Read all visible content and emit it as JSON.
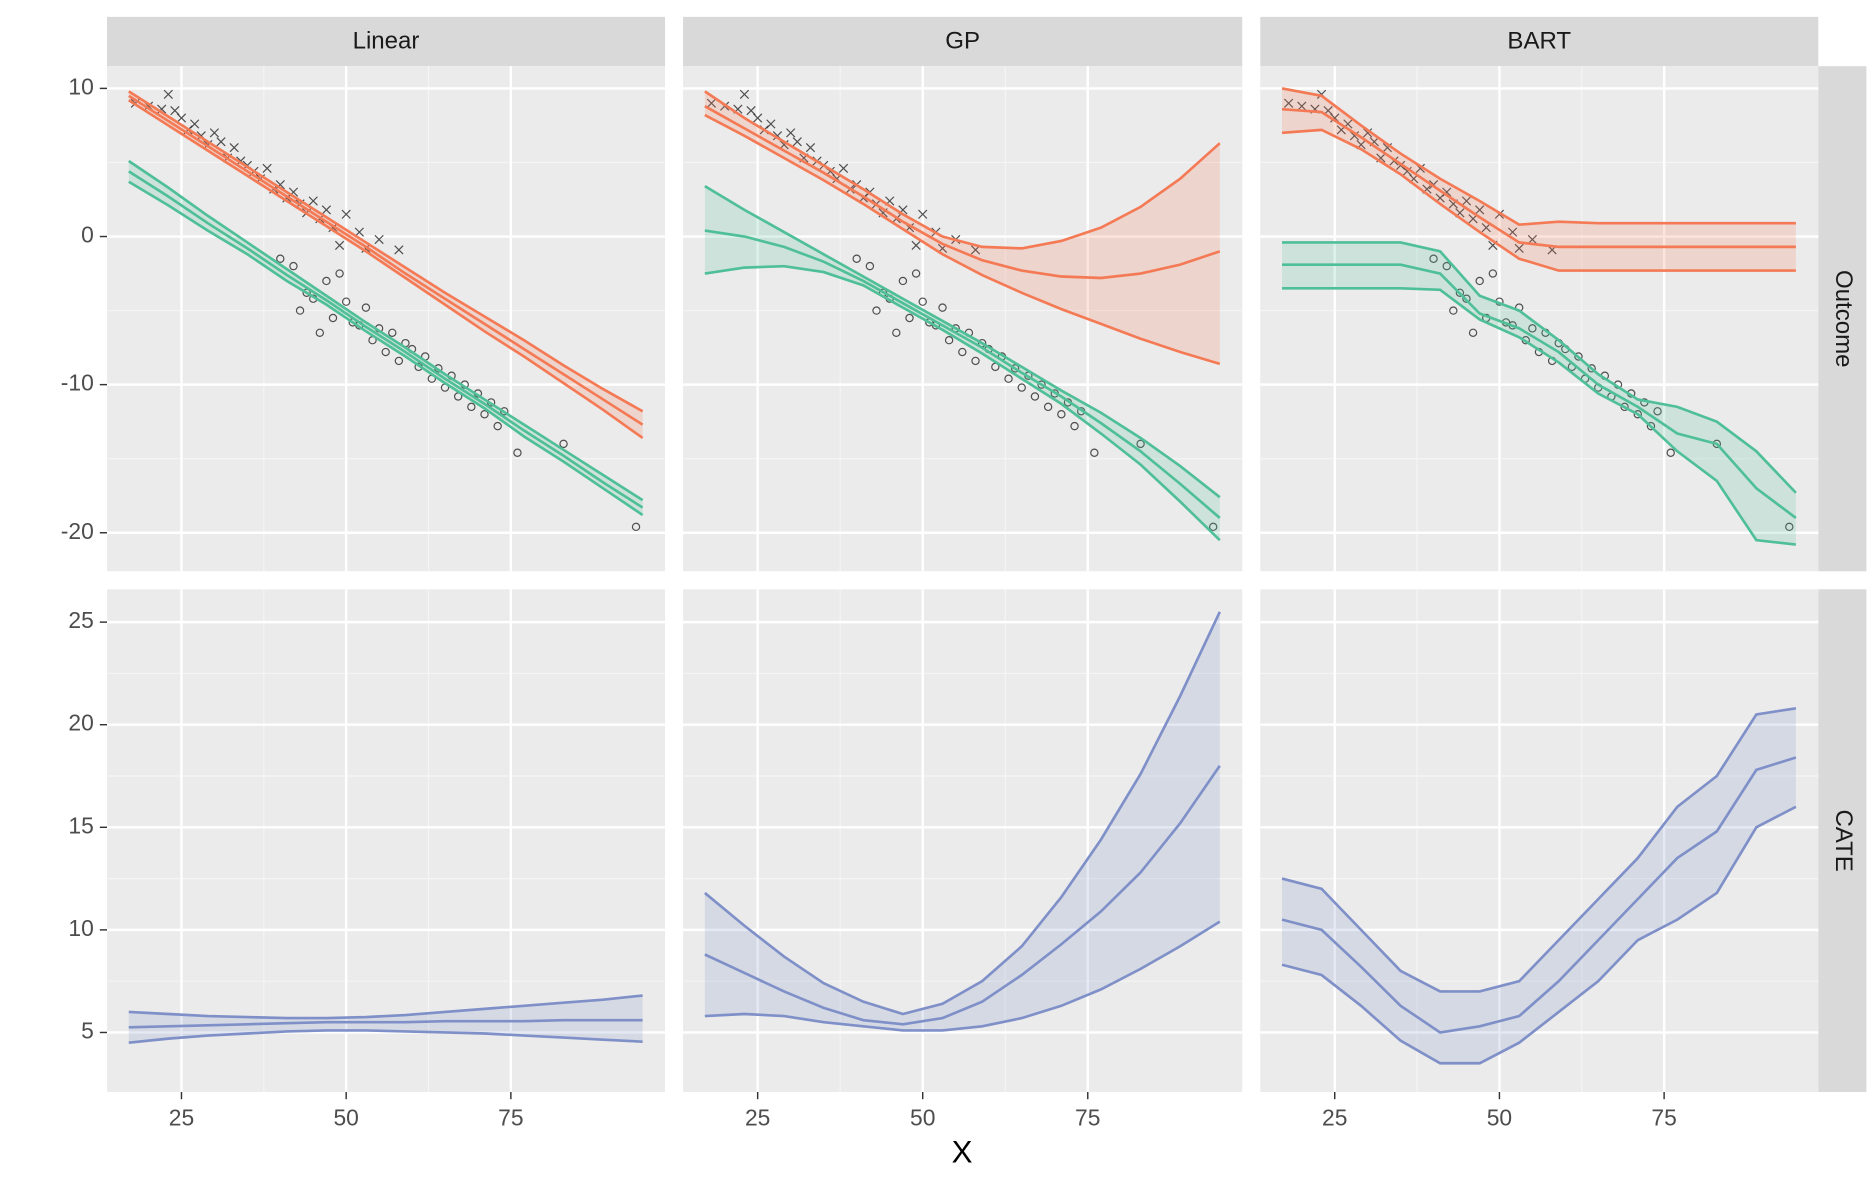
{
  "chart_data": {
    "type": "facet_ribbon",
    "xlabel": "X",
    "columns": [
      "Linear",
      "GP",
      "BART"
    ],
    "x": [
      17,
      23,
      29,
      35,
      41,
      47,
      53,
      59,
      65,
      71,
      77,
      83,
      89,
      95
    ],
    "xlim": [
      13.7,
      98.4
    ],
    "xticks": [
      25,
      50,
      75
    ],
    "grid": true,
    "rows": [
      {
        "label": "Outcome",
        "ylim": [
          -22.6,
          11.5
        ],
        "yticks": [
          10,
          0,
          -10,
          -20
        ],
        "points": [
          {
            "marker": "x",
            "color": "#333333",
            "x": [
              18,
              20,
              22,
              23,
              24,
              25,
              26,
              27,
              28,
              29,
              30,
              31,
              32,
              33,
              34,
              35,
              36,
              37,
              38,
              39,
              40,
              41,
              42,
              43,
              44,
              45,
              46,
              47,
              48,
              49,
              50,
              52,
              53,
              55,
              58
            ],
            "y": [
              9.0,
              8.8,
              8.6,
              9.6,
              8.5,
              8.0,
              7.2,
              7.6,
              6.8,
              6.2,
              7.0,
              6.4,
              5.3,
              6.0,
              5.1,
              4.8,
              4.4,
              3.9,
              4.6,
              3.2,
              3.5,
              2.6,
              3.0,
              2.2,
              1.6,
              2.4,
              1.2,
              1.8,
              0.6,
              -0.6,
              1.5,
              0.3,
              -0.8,
              -0.2,
              -0.9
            ]
          },
          {
            "marker": "circle",
            "color": "#333333",
            "x": [
              40,
              42,
              43,
              44,
              45,
              46,
              47,
              48,
              49,
              50,
              51,
              52,
              53,
              54,
              55,
              56,
              57,
              58,
              59,
              60,
              61,
              62,
              63,
              64,
              65,
              66,
              67,
              68,
              69,
              70,
              71,
              72,
              73,
              74,
              76,
              83,
              94
            ],
            "y": [
              -1.5,
              -2.0,
              -5.0,
              -3.8,
              -4.2,
              -6.5,
              -3.0,
              -5.5,
              -2.5,
              -4.4,
              -5.8,
              -6.0,
              -4.8,
              -7.0,
              -6.2,
              -7.8,
              -6.5,
              -8.4,
              -7.2,
              -7.6,
              -8.8,
              -8.1,
              -9.6,
              -8.9,
              -10.2,
              -9.4,
              -10.8,
              -10.0,
              -11.5,
              -10.6,
              -12.0,
              -11.2,
              -12.8,
              -11.8,
              -14.6,
              -14.0,
              -19.6
            ]
          }
        ],
        "panels": [
          {
            "series": [
              {
                "color": "#f47a55",
                "upper": [
                  9.8,
                  8.1,
                  6.4,
                  4.7,
                  3.0,
                  1.3,
                  -0.4,
                  -2.1,
                  -3.8,
                  -5.4,
                  -7.0,
                  -8.7,
                  -10.3,
                  -11.8
                ],
                "values": [
                  9.5,
                  7.8,
                  6.1,
                  4.4,
                  2.7,
                  1.0,
                  -0.7,
                  -2.5,
                  -4.2,
                  -5.9,
                  -7.6,
                  -9.3,
                  -11.0,
                  -12.7
                ],
                "lower": [
                  9.2,
                  7.5,
                  5.8,
                  4.1,
                  2.4,
                  0.7,
                  -1.0,
                  -2.8,
                  -4.6,
                  -6.4,
                  -8.1,
                  -9.9,
                  -11.7,
                  -13.6
                ]
              },
              {
                "color": "#4fbf98",
                "upper": [
                  5.1,
                  3.3,
                  1.4,
                  -0.4,
                  -2.2,
                  -4.0,
                  -5.8,
                  -7.5,
                  -9.3,
                  -11.0,
                  -12.7,
                  -14.4,
                  -16.1,
                  -17.8
                ],
                "values": [
                  4.4,
                  2.7,
                  0.9,
                  -0.8,
                  -2.6,
                  -4.3,
                  -6.1,
                  -7.8,
                  -9.6,
                  -11.3,
                  -13.1,
                  -14.8,
                  -16.6,
                  -18.3
                ],
                "lower": [
                  3.7,
                  2.1,
                  0.4,
                  -1.2,
                  -3.0,
                  -4.6,
                  -6.4,
                  -8.1,
                  -9.9,
                  -11.6,
                  -13.5,
                  -15.2,
                  -17.0,
                  -18.8
                ]
              }
            ]
          },
          {
            "series": [
              {
                "color": "#f47a55",
                "upper": [
                  9.8,
                  8.0,
                  6.4,
                  4.8,
                  3.2,
                  1.5,
                  0.0,
                  -0.7,
                  -0.8,
                  -0.3,
                  0.6,
                  2.0,
                  3.9,
                  6.3
                ],
                "values": [
                  8.8,
                  7.3,
                  5.8,
                  4.3,
                  2.7,
                  1.0,
                  -0.5,
                  -1.6,
                  -2.3,
                  -2.7,
                  -2.8,
                  -2.5,
                  -1.9,
                  -1.0
                ],
                "lower": [
                  8.2,
                  6.8,
                  5.3,
                  3.8,
                  2.2,
                  0.5,
                  -1.2,
                  -2.6,
                  -3.8,
                  -4.9,
                  -5.9,
                  -6.9,
                  -7.8,
                  -8.6
                ]
              },
              {
                "color": "#4fbf98",
                "upper": [
                  3.4,
                  1.8,
                  0.3,
                  -1.2,
                  -2.7,
                  -4.2,
                  -5.7,
                  -7.2,
                  -8.8,
                  -10.4,
                  -11.9,
                  -13.6,
                  -15.5,
                  -17.6
                ],
                "values": [
                  0.4,
                  0.0,
                  -0.7,
                  -1.7,
                  -3.0,
                  -4.5,
                  -6.0,
                  -7.5,
                  -9.2,
                  -10.8,
                  -12.6,
                  -14.5,
                  -16.7,
                  -19.0
                ],
                "lower": [
                  -2.5,
                  -2.1,
                  -2.0,
                  -2.4,
                  -3.3,
                  -4.8,
                  -6.3,
                  -7.9,
                  -9.6,
                  -11.3,
                  -13.3,
                  -15.4,
                  -17.9,
                  -20.5
                ]
              }
            ]
          },
          {
            "series": [
              {
                "color": "#f47a55",
                "upper": [
                  10.0,
                  9.5,
                  7.5,
                  5.6,
                  3.9,
                  2.4,
                  0.8,
                  1.0,
                  0.9,
                  0.9,
                  0.9,
                  0.9,
                  0.9,
                  0.9
                ],
                "values": [
                  8.6,
                  8.4,
                  6.7,
                  4.9,
                  3.1,
                  1.3,
                  -0.4,
                  -0.7,
                  -0.7,
                  -0.7,
                  -0.7,
                  -0.7,
                  -0.7,
                  -0.7
                ],
                "lower": [
                  7.0,
                  7.2,
                  5.9,
                  4.2,
                  2.2,
                  0.3,
                  -1.5,
                  -2.3,
                  -2.3,
                  -2.3,
                  -2.3,
                  -2.3,
                  -2.3,
                  -2.3
                ]
              },
              {
                "color": "#4fbf98",
                "upper": [
                  -0.4,
                  -0.4,
                  -0.4,
                  -0.4,
                  -1.0,
                  -4.0,
                  -5.0,
                  -7.0,
                  -9.3,
                  -11.0,
                  -11.5,
                  -12.5,
                  -14.5,
                  -17.3
                ],
                "values": [
                  -1.9,
                  -1.9,
                  -1.9,
                  -1.9,
                  -2.5,
                  -5.2,
                  -6.2,
                  -7.8,
                  -10.0,
                  -11.5,
                  -13.3,
                  -14.0,
                  -17.0,
                  -19.0
                ],
                "lower": [
                  -3.5,
                  -3.5,
                  -3.5,
                  -3.5,
                  -3.6,
                  -5.6,
                  -6.8,
                  -8.5,
                  -10.6,
                  -12.0,
                  -14.5,
                  -16.5,
                  -20.5,
                  -20.8
                ]
              }
            ]
          }
        ]
      },
      {
        "label": "CATE",
        "ylim": [
          2.1,
          26.6
        ],
        "yticks": [
          5,
          10,
          15,
          20,
          25
        ],
        "panels": [
          {
            "series": [
              {
                "color": "#7f90c8",
                "upper": [
                  6.0,
                  5.9,
                  5.8,
                  5.75,
                  5.7,
                  5.7,
                  5.75,
                  5.85,
                  6.0,
                  6.15,
                  6.3,
                  6.45,
                  6.6,
                  6.8
                ],
                "values": [
                  5.25,
                  5.3,
                  5.35,
                  5.4,
                  5.45,
                  5.5,
                  5.5,
                  5.5,
                  5.55,
                  5.55,
                  5.55,
                  5.6,
                  5.6,
                  5.6
                ],
                "lower": [
                  4.5,
                  4.7,
                  4.85,
                  4.95,
                  5.05,
                  5.1,
                  5.1,
                  5.05,
                  5.0,
                  4.95,
                  4.85,
                  4.75,
                  4.65,
                  4.55
                ]
              }
            ]
          },
          {
            "series": [
              {
                "color": "#7f90c8",
                "upper": [
                  11.8,
                  10.2,
                  8.7,
                  7.4,
                  6.5,
                  5.9,
                  6.4,
                  7.5,
                  9.2,
                  11.6,
                  14.4,
                  17.6,
                  21.4,
                  25.5
                ],
                "values": [
                  8.8,
                  7.9,
                  7.0,
                  6.2,
                  5.6,
                  5.4,
                  5.7,
                  6.5,
                  7.8,
                  9.3,
                  10.9,
                  12.8,
                  15.2,
                  18.0
                ],
                "lower": [
                  5.8,
                  5.9,
                  5.8,
                  5.5,
                  5.3,
                  5.1,
                  5.1,
                  5.3,
                  5.7,
                  6.3,
                  7.1,
                  8.1,
                  9.2,
                  10.4
                ]
              }
            ]
          },
          {
            "series": [
              {
                "color": "#7f90c8",
                "upper": [
                  12.5,
                  12.0,
                  10.0,
                  8.0,
                  7.0,
                  7.0,
                  7.5,
                  9.5,
                  11.5,
                  13.5,
                  16.0,
                  17.5,
                  20.5,
                  20.8
                ],
                "values": [
                  10.5,
                  10.0,
                  8.2,
                  6.3,
                  5.0,
                  5.3,
                  5.8,
                  7.5,
                  9.5,
                  11.5,
                  13.5,
                  14.8,
                  17.8,
                  18.4
                ],
                "lower": [
                  8.3,
                  7.8,
                  6.3,
                  4.6,
                  3.5,
                  3.5,
                  4.5,
                  6.0,
                  7.5,
                  9.5,
                  10.5,
                  11.8,
                  15.0,
                  16.0
                ]
              }
            ]
          }
        ]
      }
    ]
  }
}
